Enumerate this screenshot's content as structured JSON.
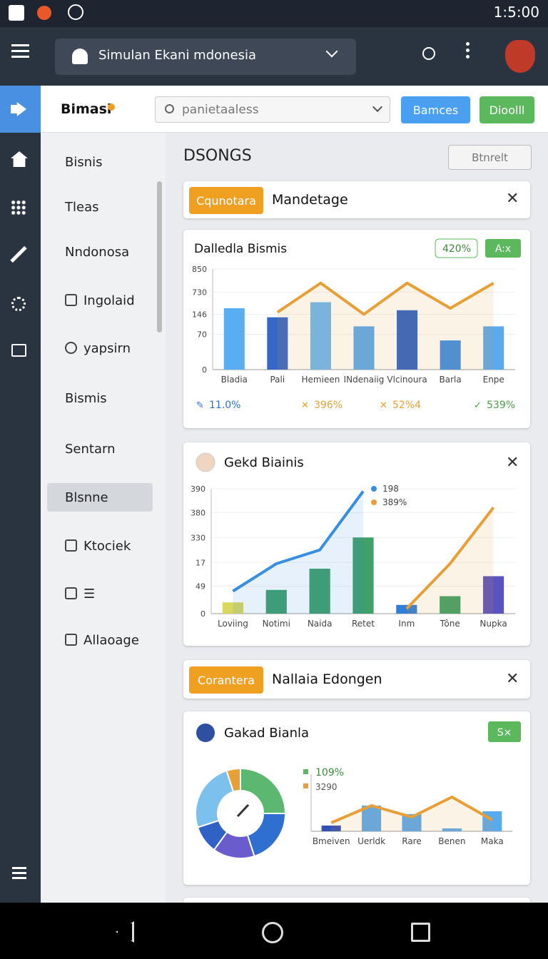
{
  "status_bar": {
    "time": "1:5:00"
  },
  "top_bar": {
    "title": "Simulan Ekani mdonesia"
  },
  "header": {
    "brand": "Bimasi",
    "search_placeholder": "panietaaless",
    "buttons": [
      "Bamces",
      "Dioolll"
    ]
  },
  "sidebar": {
    "items": [
      "Bisnis",
      "Tleas",
      "Nndonosa",
      "Ingolaid",
      "yapsirn",
      "Bismis",
      "Sentarn",
      "Blsnne",
      "Ktociek",
      "☰",
      "Allaoage"
    ],
    "active": 7
  },
  "main": {
    "title": "DSONGS",
    "button": "Btnrelt",
    "panels": [
      {
        "badge": "Cqunotara",
        "title": "Mandetage"
      },
      {
        "badge": "Corantera",
        "title": "Nallaia Edongen"
      }
    ],
    "charts": [
      {
        "type": "bar",
        "title": "Dalledla Bismis",
        "badges": [
          "420%",
          "A:x"
        ],
        "categories": [
          "Bladia",
          "Pali",
          "Hemieen",
          "INdenaiig",
          "Vlcinoura",
          "Barla",
          "Enpe"
        ],
        "ylim": [
          0,
          100
        ],
        "yticks": [
          0,
          {
            "value": 35,
            "label": "70"
          },
          {
            "value": 55,
            "label": "146"
          },
          {
            "value": 77,
            "label": "730"
          },
          {
            "value": 100,
            "label": "850"
          }
        ],
        "bars": {
          "values": [
            61,
            52,
            67,
            43,
            59,
            29,
            43
          ],
          "colors": [
            "#58aef0",
            "#3567c8",
            "#6cb8f2",
            "#5aaaee",
            "#2f62c4",
            "#3d8ee6",
            "#5aaaee"
          ]
        },
        "series": [
          {
            "color": "#e6a037",
            "values": [
              null,
              57,
              86,
              55,
              86,
              61,
              86
            ]
          }
        ],
        "stats": [
          "11.0%",
          "396%",
          "52%4",
          "539%"
        ],
        "stat_colors": [
          "#2f6fd0",
          "#e6a037",
          "#e6a037",
          "#4aa04a"
        ]
      },
      {
        "type": "bar",
        "title": "Gekd Biainis",
        "categories": [
          "Loviing",
          "Notimi",
          "Naida",
          "Retet",
          "Inm",
          "Tône",
          "Nupka"
        ],
        "ylim": [
          0,
          100
        ],
        "yticks": [
          0,
          {
            "value": 22,
            "label": "49"
          },
          {
            "value": 41,
            "label": "17"
          },
          {
            "value": 61,
            "label": "330"
          },
          {
            "value": 81,
            "label": "380"
          },
          {
            "value": 100,
            "label": "390"
          }
        ],
        "bars": {
          "values": [
            9,
            19,
            36,
            61,
            7,
            14,
            30
          ],
          "colors": [
            "#d8d860",
            "#3fa06a",
            "#3fa06a",
            "#3fa06a",
            "#2f7fd8",
            "#3fa06a",
            "#5a52c0"
          ]
        },
        "series": [
          {
            "name": "198",
            "color": "#3a8ee0",
            "values": [
              18,
              40,
              51,
              98,
              null,
              null,
              null
            ]
          },
          {
            "name": "389%",
            "color": "#e6a037",
            "values": [
              null,
              null,
              null,
              null,
              4,
              40,
              85
            ]
          }
        ]
      },
      {
        "type": "donut",
        "title": "Gakad Bianla",
        "badges": [
          "S×"
        ],
        "slices": {
          "values": [
            25,
            20,
            15,
            10,
            25,
            5
          ],
          "colors": [
            "#5cb870",
            "#2f6fd0",
            "#6a5ccc",
            "#2f62c4",
            "#7cc0ee",
            "#e6a037"
          ]
        },
        "legend": [
          "109%",
          "3290"
        ],
        "categories": [
          "Bmeiven",
          "Uerldk",
          "Rare",
          "Benen",
          "Maka"
        ],
        "ylim": [
          0,
          100
        ],
        "bars": {
          "values": [
            10,
            45,
            30,
            5,
            35
          ],
          "colors": [
            "#3050b8",
            "#5aaaee",
            "#5aaaee",
            "#5aaaee",
            "#5aaaee"
          ]
        },
        "series": [
          {
            "color": "#e6a037",
            "values": [
              15,
              45,
              25,
              60,
              20
            ]
          }
        ]
      }
    ]
  }
}
